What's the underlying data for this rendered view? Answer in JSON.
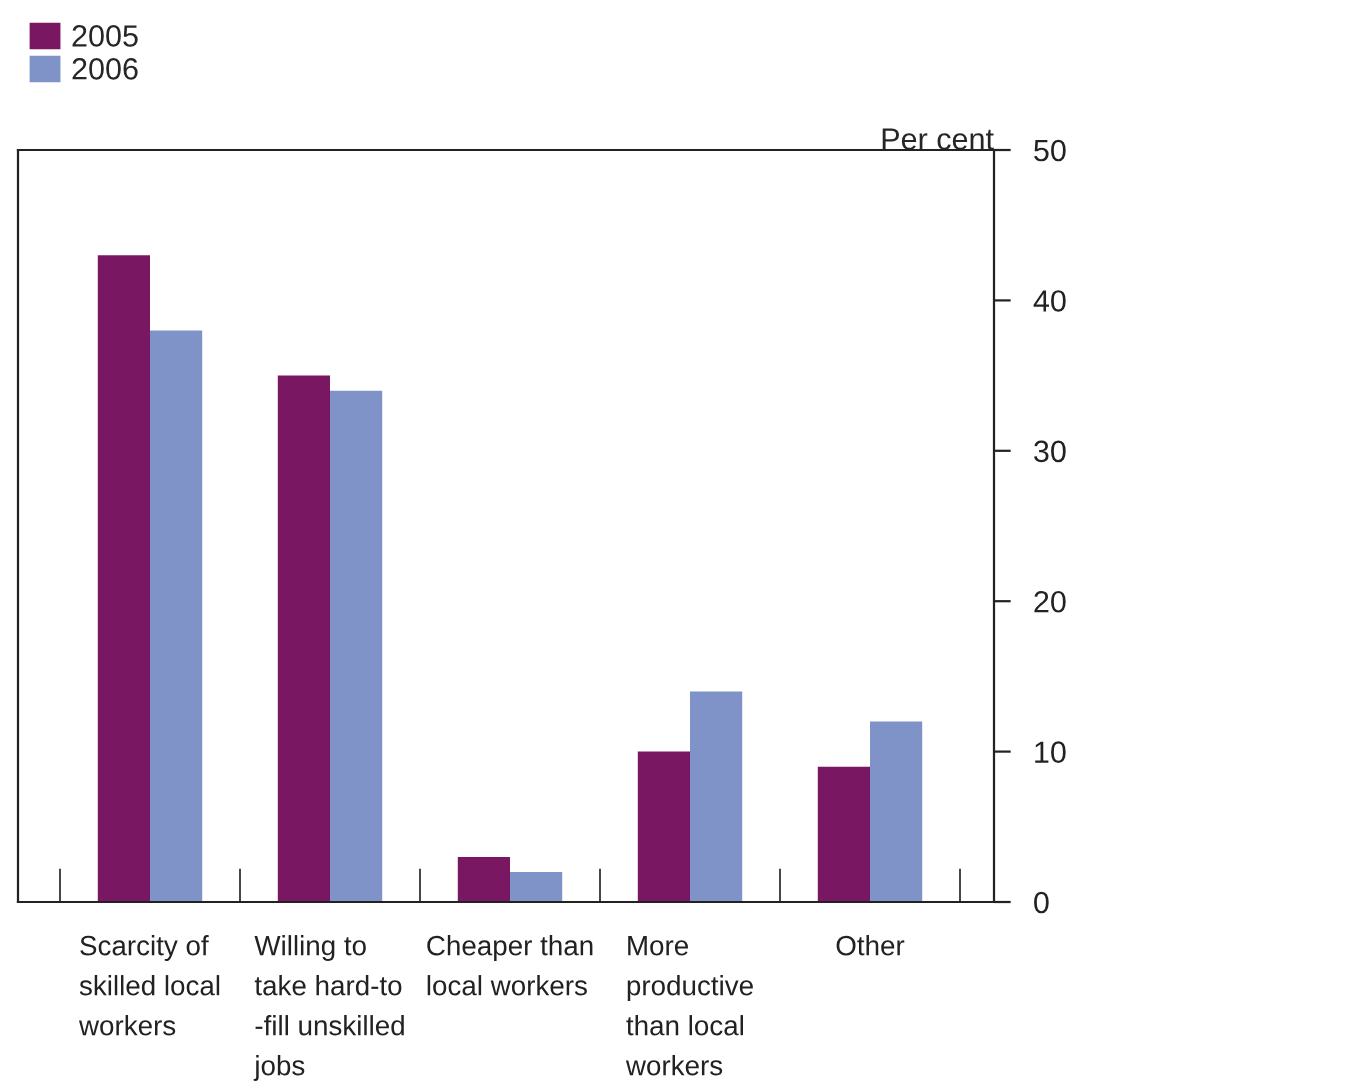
{
  "chart_data": {
    "type": "bar",
    "categories": [
      "Scarcity of\nskilled local\nworkers",
      "Willing to\ntake hard-to\n-fill unskilled\njobs",
      "Cheaper than\nlocal workers",
      "More\nproductive\nthan local\nworkers",
      "Other"
    ],
    "series": [
      {
        "name": "2005",
        "color": "#7a1762",
        "values": [
          43,
          35,
          3,
          10,
          9
        ]
      },
      {
        "name": "2006",
        "color": "#7f93c9",
        "values": [
          38,
          34,
          2,
          14,
          12
        ]
      }
    ],
    "ylabel": "Per cent",
    "ylim": [
      0,
      50
    ],
    "yticks": [
      0,
      10,
      20,
      30,
      40,
      50
    ],
    "grid": false,
    "legend": "top left"
  }
}
